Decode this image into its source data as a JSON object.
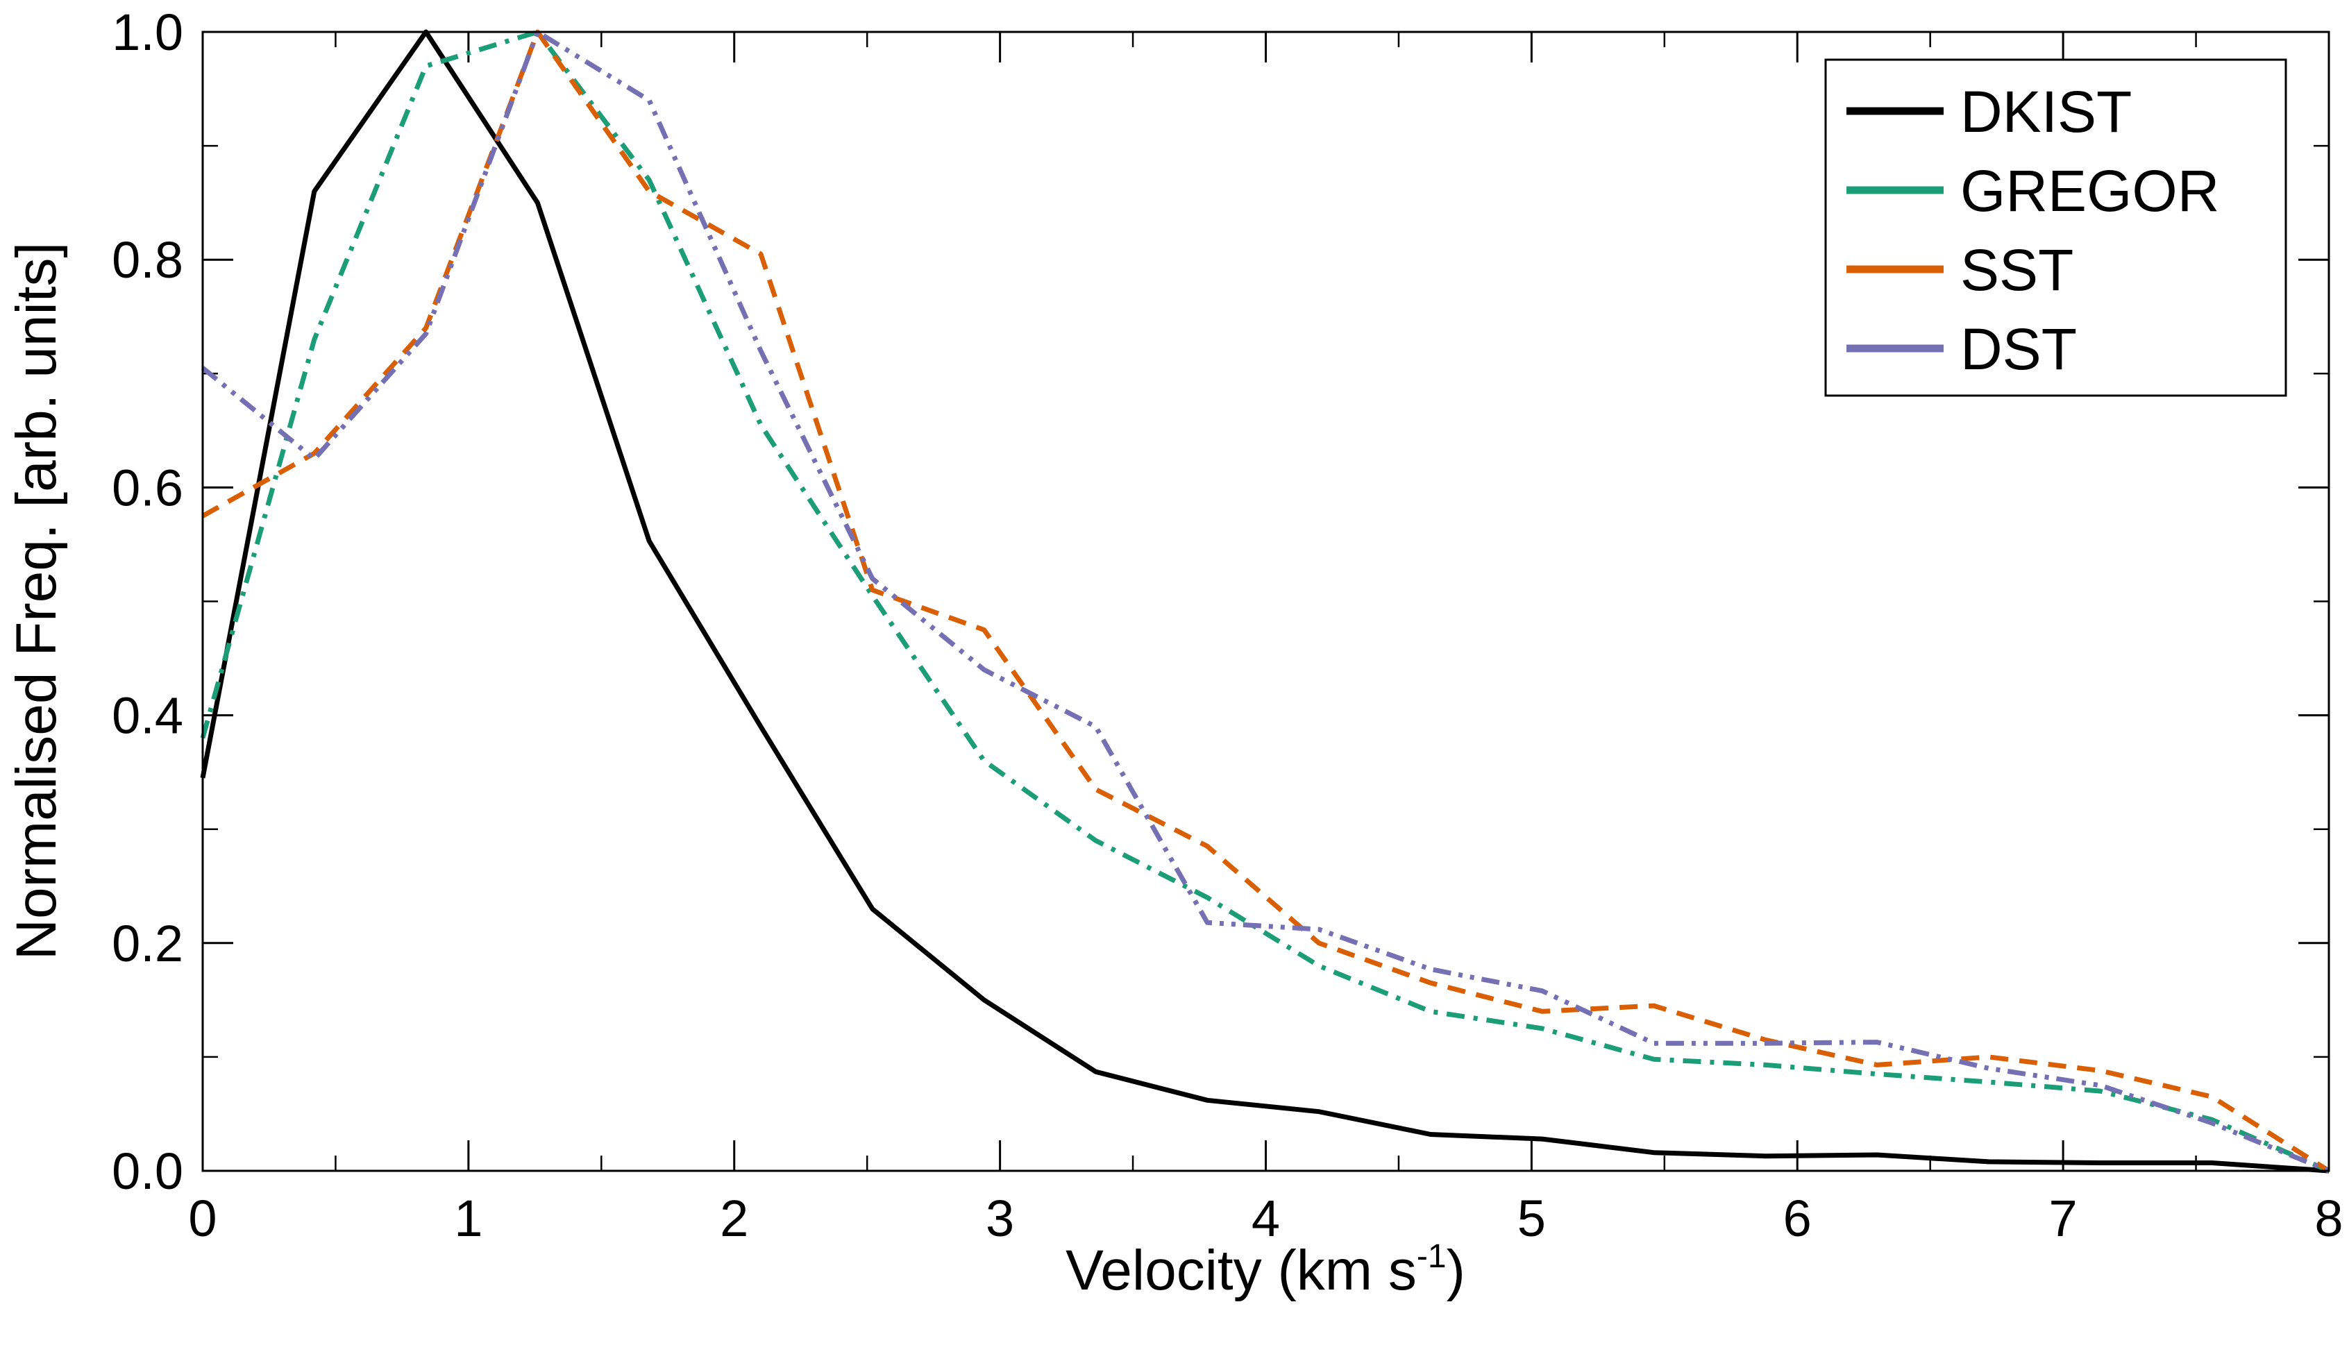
{
  "chart_data": {
    "type": "line",
    "title": "",
    "xlabel": "Velocity (km s",
    "xlabel_sup": "-1",
    "xlabel_suffix": ")",
    "ylabel": "Normalised Freq. [arb. units]",
    "xlim": [
      0,
      8
    ],
    "ylim": [
      0,
      1
    ],
    "x_ticks": [
      0,
      1,
      2,
      3,
      4,
      5,
      6,
      7,
      8
    ],
    "x_tick_labels": [
      "0",
      "1",
      "2",
      "3",
      "4",
      "5",
      "6",
      "7",
      "8"
    ],
    "y_ticks": [
      0,
      0.2,
      0.4,
      0.6,
      0.8,
      1.0
    ],
    "y_tick_labels": [
      "0.0",
      "0.2",
      "0.4",
      "0.6",
      "0.8",
      "1.0"
    ],
    "x_minor_step": 0.5,
    "y_minor_step": 0.1,
    "grid": false,
    "legend_position": "top-right",
    "series": [
      {
        "name": "DKIST",
        "color": "#000000",
        "dash": "solid",
        "x": [
          0,
          0.42,
          0.84,
          1.26,
          1.68,
          2.1,
          2.52,
          2.94,
          3.36,
          3.78,
          4.2,
          4.62,
          5.04,
          5.46,
          5.88,
          6.3,
          6.72,
          7.14,
          7.56,
          8.0
        ],
        "y": [
          0.345,
          0.86,
          1.0,
          0.85,
          0.553,
          0.39,
          0.23,
          0.15,
          0.087,
          0.062,
          0.052,
          0.032,
          0.028,
          0.016,
          0.013,
          0.014,
          0.008,
          0.007,
          0.007,
          0.0
        ]
      },
      {
        "name": "GREGOR",
        "color": "#1b9e77",
        "dash": "dashdot",
        "x": [
          0,
          0.42,
          0.84,
          1.26,
          1.68,
          2.1,
          2.52,
          2.94,
          3.36,
          3.78,
          4.2,
          4.62,
          5.04,
          5.46,
          5.88,
          6.3,
          6.72,
          7.14,
          7.56,
          8.0
        ],
        "y": [
          0.38,
          0.73,
          0.97,
          1.0,
          0.87,
          0.655,
          0.505,
          0.36,
          0.29,
          0.24,
          0.18,
          0.14,
          0.125,
          0.098,
          0.093,
          0.085,
          0.078,
          0.07,
          0.045,
          0.0
        ]
      },
      {
        "name": "SST",
        "color": "#d95f02",
        "dash": "dashed",
        "x": [
          0,
          0.42,
          0.84,
          1.26,
          1.68,
          2.1,
          2.52,
          2.94,
          3.36,
          3.78,
          4.2,
          4.62,
          5.04,
          5.46,
          5.88,
          6.3,
          6.72,
          7.14,
          7.56,
          8.0
        ],
        "y": [
          0.575,
          0.63,
          0.74,
          1.0,
          0.86,
          0.805,
          0.51,
          0.475,
          0.335,
          0.285,
          0.2,
          0.165,
          0.14,
          0.145,
          0.115,
          0.093,
          0.1,
          0.088,
          0.065,
          0.0
        ]
      },
      {
        "name": "DST",
        "color": "#7570b3",
        "dash": "dashdotdot",
        "x": [
          0,
          0.42,
          0.84,
          1.26,
          1.68,
          2.1,
          2.52,
          2.94,
          3.36,
          3.78,
          4.2,
          4.62,
          5.04,
          5.46,
          5.88,
          6.3,
          6.72,
          7.14,
          7.56,
          8.0
        ],
        "y": [
          0.705,
          0.625,
          0.735,
          1.0,
          0.94,
          0.72,
          0.52,
          0.44,
          0.39,
          0.218,
          0.212,
          0.177,
          0.158,
          0.112,
          0.112,
          0.113,
          0.09,
          0.075,
          0.042,
          0.0
        ]
      }
    ]
  }
}
